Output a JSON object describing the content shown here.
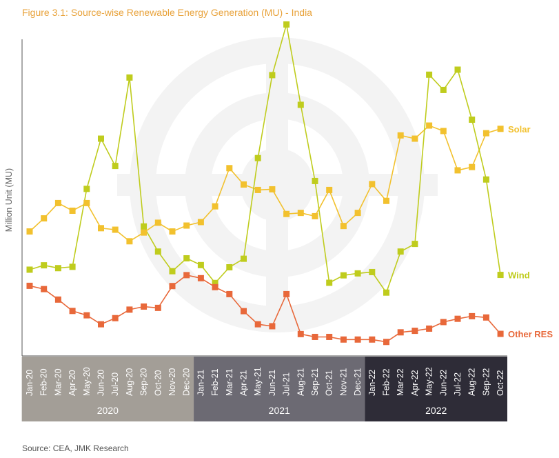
{
  "page": {
    "title": "Figure 3.1: Source-wise Renewable Energy Generation (MU) - India",
    "source": "Source: CEA, JMK Research"
  },
  "colors": {
    "solar": "#F2C12E",
    "wind": "#BFCC1D",
    "other": "#E8683A",
    "title": "#E8A23A",
    "band2020": "#A39E97",
    "band2021": "#6C6A73",
    "band2022": "#2E2C37"
  },
  "chart_data": {
    "type": "line",
    "ylabel": "Million Unit (MU)",
    "xlabel": "",
    "ylim": [
      0,
      14500
    ],
    "grid": false,
    "legend": "inline labels at line ends (right)",
    "categories": [
      "Jan-20",
      "Feb-20",
      "Mar-20",
      "Apr-20",
      "May-20",
      "Jun-20",
      "Jul-20",
      "Aug-20",
      "Sep-20",
      "Oct-20",
      "Nov-20",
      "Dec-20",
      "Jan-21",
      "Feb-21",
      "Mar-21",
      "Apr-21",
      "May-21",
      "Jun-21",
      "Jul-21",
      "Aug-21",
      "Sep-21",
      "Oct-21",
      "Nov-21",
      "Dec-21",
      "Jan-22",
      "Feb-22",
      "Mar-22",
      "Apr-22",
      "May-22",
      "Jun-22",
      "Jul-22",
      "Aug-22",
      "Sep-22",
      "Oct-22"
    ],
    "year_groups": [
      {
        "label": "2020",
        "start": 0,
        "end": 11,
        "color": "#A39E97"
      },
      {
        "label": "2021",
        "start": 12,
        "end": 23,
        "color": "#6C6A73"
      },
      {
        "label": "2022",
        "start": 24,
        "end": 33,
        "color": "#2E2C37"
      }
    ],
    "series": [
      {
        "name": "Solar",
        "key": "solar",
        "values": [
          5700,
          6300,
          7000,
          6650,
          7000,
          5850,
          5780,
          5250,
          5650,
          6100,
          5700,
          5970,
          6130,
          6850,
          8600,
          7850,
          7600,
          7630,
          6500,
          6550,
          6400,
          7600,
          5950,
          6550,
          7870,
          7100,
          10100,
          9950,
          10550,
          10300,
          8500,
          8650,
          10200,
          10400
        ]
      },
      {
        "name": "Wind",
        "key": "wind",
        "values": [
          3950,
          4150,
          4020,
          4080,
          7650,
          9950,
          8700,
          12750,
          5930,
          4780,
          3880,
          4470,
          4160,
          3340,
          4060,
          4450,
          9060,
          12860,
          15180,
          11500,
          8010,
          3350,
          3690,
          3780,
          3840,
          2900,
          4780,
          5130,
          12880,
          12180,
          13110,
          10820,
          8080,
          3710
        ]
      },
      {
        "name": "Other RES",
        "key": "other",
        "values": [
          3210,
          3060,
          2580,
          2060,
          1860,
          1450,
          1730,
          2120,
          2260,
          2200,
          3200,
          3700,
          3560,
          3150,
          2830,
          2050,
          1450,
          1360,
          2830,
          1000,
          870,
          870,
          750,
          750,
          750,
          640,
          1080,
          1150,
          1250,
          1550,
          1700,
          1820,
          1760,
          1010
        ]
      }
    ]
  }
}
